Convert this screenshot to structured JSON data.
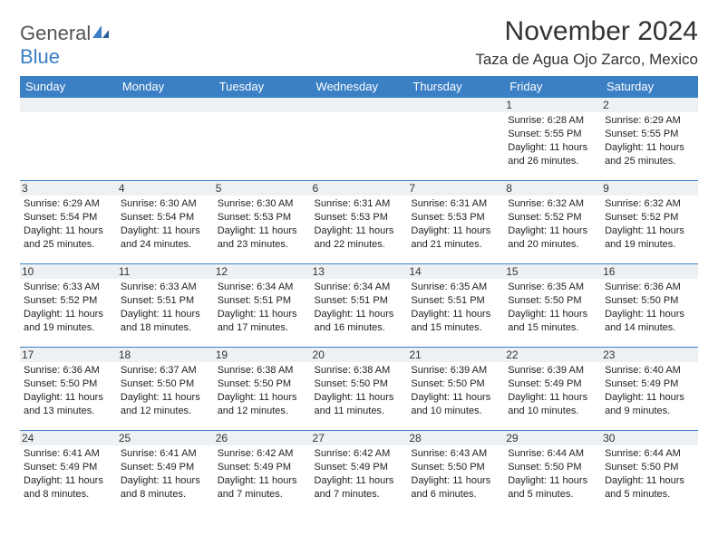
{
  "brand": {
    "part1": "General",
    "part2": "Blue",
    "accent": "#3b7fc4"
  },
  "title": "November 2024",
  "location": "Taza de Agua Ojo Zarco, Mexico",
  "colors": {
    "header_bg": "#3b7fc4",
    "header_fg": "#ffffff",
    "band_bg": "#eef1f3",
    "border": "#3b7fc4",
    "text": "#222222",
    "background": "#ffffff"
  },
  "typography": {
    "title_fontsize": 30,
    "location_fontsize": 17,
    "dayheader_fontsize": 13,
    "daynum_fontsize": 12,
    "info_fontsize": 11
  },
  "day_headers": [
    "Sunday",
    "Monday",
    "Tuesday",
    "Wednesday",
    "Thursday",
    "Friday",
    "Saturday"
  ],
  "weeks": [
    [
      null,
      null,
      null,
      null,
      null,
      {
        "n": "1",
        "sr": "Sunrise: 6:28 AM",
        "ss": "Sunset: 5:55 PM",
        "dl": "Daylight: 11 hours and 26 minutes."
      },
      {
        "n": "2",
        "sr": "Sunrise: 6:29 AM",
        "ss": "Sunset: 5:55 PM",
        "dl": "Daylight: 11 hours and 25 minutes."
      }
    ],
    [
      {
        "n": "3",
        "sr": "Sunrise: 6:29 AM",
        "ss": "Sunset: 5:54 PM",
        "dl": "Daylight: 11 hours and 25 minutes."
      },
      {
        "n": "4",
        "sr": "Sunrise: 6:30 AM",
        "ss": "Sunset: 5:54 PM",
        "dl": "Daylight: 11 hours and 24 minutes."
      },
      {
        "n": "5",
        "sr": "Sunrise: 6:30 AM",
        "ss": "Sunset: 5:53 PM",
        "dl": "Daylight: 11 hours and 23 minutes."
      },
      {
        "n": "6",
        "sr": "Sunrise: 6:31 AM",
        "ss": "Sunset: 5:53 PM",
        "dl": "Daylight: 11 hours and 22 minutes."
      },
      {
        "n": "7",
        "sr": "Sunrise: 6:31 AM",
        "ss": "Sunset: 5:53 PM",
        "dl": "Daylight: 11 hours and 21 minutes."
      },
      {
        "n": "8",
        "sr": "Sunrise: 6:32 AM",
        "ss": "Sunset: 5:52 PM",
        "dl": "Daylight: 11 hours and 20 minutes."
      },
      {
        "n": "9",
        "sr": "Sunrise: 6:32 AM",
        "ss": "Sunset: 5:52 PM",
        "dl": "Daylight: 11 hours and 19 minutes."
      }
    ],
    [
      {
        "n": "10",
        "sr": "Sunrise: 6:33 AM",
        "ss": "Sunset: 5:52 PM",
        "dl": "Daylight: 11 hours and 19 minutes."
      },
      {
        "n": "11",
        "sr": "Sunrise: 6:33 AM",
        "ss": "Sunset: 5:51 PM",
        "dl": "Daylight: 11 hours and 18 minutes."
      },
      {
        "n": "12",
        "sr": "Sunrise: 6:34 AM",
        "ss": "Sunset: 5:51 PM",
        "dl": "Daylight: 11 hours and 17 minutes."
      },
      {
        "n": "13",
        "sr": "Sunrise: 6:34 AM",
        "ss": "Sunset: 5:51 PM",
        "dl": "Daylight: 11 hours and 16 minutes."
      },
      {
        "n": "14",
        "sr": "Sunrise: 6:35 AM",
        "ss": "Sunset: 5:51 PM",
        "dl": "Daylight: 11 hours and 15 minutes."
      },
      {
        "n": "15",
        "sr": "Sunrise: 6:35 AM",
        "ss": "Sunset: 5:50 PM",
        "dl": "Daylight: 11 hours and 15 minutes."
      },
      {
        "n": "16",
        "sr": "Sunrise: 6:36 AM",
        "ss": "Sunset: 5:50 PM",
        "dl": "Daylight: 11 hours and 14 minutes."
      }
    ],
    [
      {
        "n": "17",
        "sr": "Sunrise: 6:36 AM",
        "ss": "Sunset: 5:50 PM",
        "dl": "Daylight: 11 hours and 13 minutes."
      },
      {
        "n": "18",
        "sr": "Sunrise: 6:37 AM",
        "ss": "Sunset: 5:50 PM",
        "dl": "Daylight: 11 hours and 12 minutes."
      },
      {
        "n": "19",
        "sr": "Sunrise: 6:38 AM",
        "ss": "Sunset: 5:50 PM",
        "dl": "Daylight: 11 hours and 12 minutes."
      },
      {
        "n": "20",
        "sr": "Sunrise: 6:38 AM",
        "ss": "Sunset: 5:50 PM",
        "dl": "Daylight: 11 hours and 11 minutes."
      },
      {
        "n": "21",
        "sr": "Sunrise: 6:39 AM",
        "ss": "Sunset: 5:50 PM",
        "dl": "Daylight: 11 hours and 10 minutes."
      },
      {
        "n": "22",
        "sr": "Sunrise: 6:39 AM",
        "ss": "Sunset: 5:49 PM",
        "dl": "Daylight: 11 hours and 10 minutes."
      },
      {
        "n": "23",
        "sr": "Sunrise: 6:40 AM",
        "ss": "Sunset: 5:49 PM",
        "dl": "Daylight: 11 hours and 9 minutes."
      }
    ],
    [
      {
        "n": "24",
        "sr": "Sunrise: 6:41 AM",
        "ss": "Sunset: 5:49 PM",
        "dl": "Daylight: 11 hours and 8 minutes."
      },
      {
        "n": "25",
        "sr": "Sunrise: 6:41 AM",
        "ss": "Sunset: 5:49 PM",
        "dl": "Daylight: 11 hours and 8 minutes."
      },
      {
        "n": "26",
        "sr": "Sunrise: 6:42 AM",
        "ss": "Sunset: 5:49 PM",
        "dl": "Daylight: 11 hours and 7 minutes."
      },
      {
        "n": "27",
        "sr": "Sunrise: 6:42 AM",
        "ss": "Sunset: 5:49 PM",
        "dl": "Daylight: 11 hours and 7 minutes."
      },
      {
        "n": "28",
        "sr": "Sunrise: 6:43 AM",
        "ss": "Sunset: 5:50 PM",
        "dl": "Daylight: 11 hours and 6 minutes."
      },
      {
        "n": "29",
        "sr": "Sunrise: 6:44 AM",
        "ss": "Sunset: 5:50 PM",
        "dl": "Daylight: 11 hours and 5 minutes."
      },
      {
        "n": "30",
        "sr": "Sunrise: 6:44 AM",
        "ss": "Sunset: 5:50 PM",
        "dl": "Daylight: 11 hours and 5 minutes."
      }
    ]
  ]
}
